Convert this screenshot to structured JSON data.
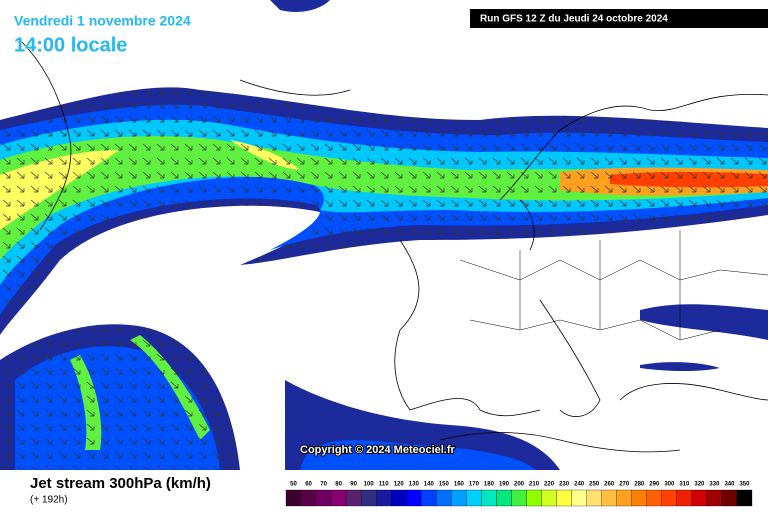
{
  "header": {
    "date": "Vendredi 1 novembre 2024",
    "time": "14:00 locale",
    "run": "Run GFS 12 Z du Jeudi 24 octobre 2024"
  },
  "map": {
    "copyright": "Copyright © 2024 Meteociel.fr"
  },
  "footer": {
    "title": "Jet stream 300hPa (km/h)",
    "lead": "(+ 192h)"
  },
  "scale": {
    "values": [
      50,
      60,
      70,
      80,
      90,
      100,
      110,
      120,
      130,
      140,
      150,
      160,
      170,
      180,
      190,
      200,
      210,
      220,
      230,
      240,
      250,
      260,
      270,
      280,
      290,
      300,
      310,
      320,
      330,
      340,
      350
    ],
    "colors": [
      "#3c0030",
      "#5a0048",
      "#700060",
      "#860070",
      "#5a2070",
      "#303080",
      "#1a1aa0",
      "#0000c0",
      "#0000ff",
      "#0040ff",
      "#0070ff",
      "#00a0ff",
      "#00d0ff",
      "#00e8c0",
      "#00e880",
      "#40f040",
      "#90ff00",
      "#d0ff20",
      "#ffff40",
      "#ffff90",
      "#ffe070",
      "#ffc040",
      "#ffa020",
      "#ff8000",
      "#ff6000",
      "#ff4000",
      "#f02000",
      "#d00000",
      "#a00000",
      "#700000",
      "#000000"
    ]
  }
}
